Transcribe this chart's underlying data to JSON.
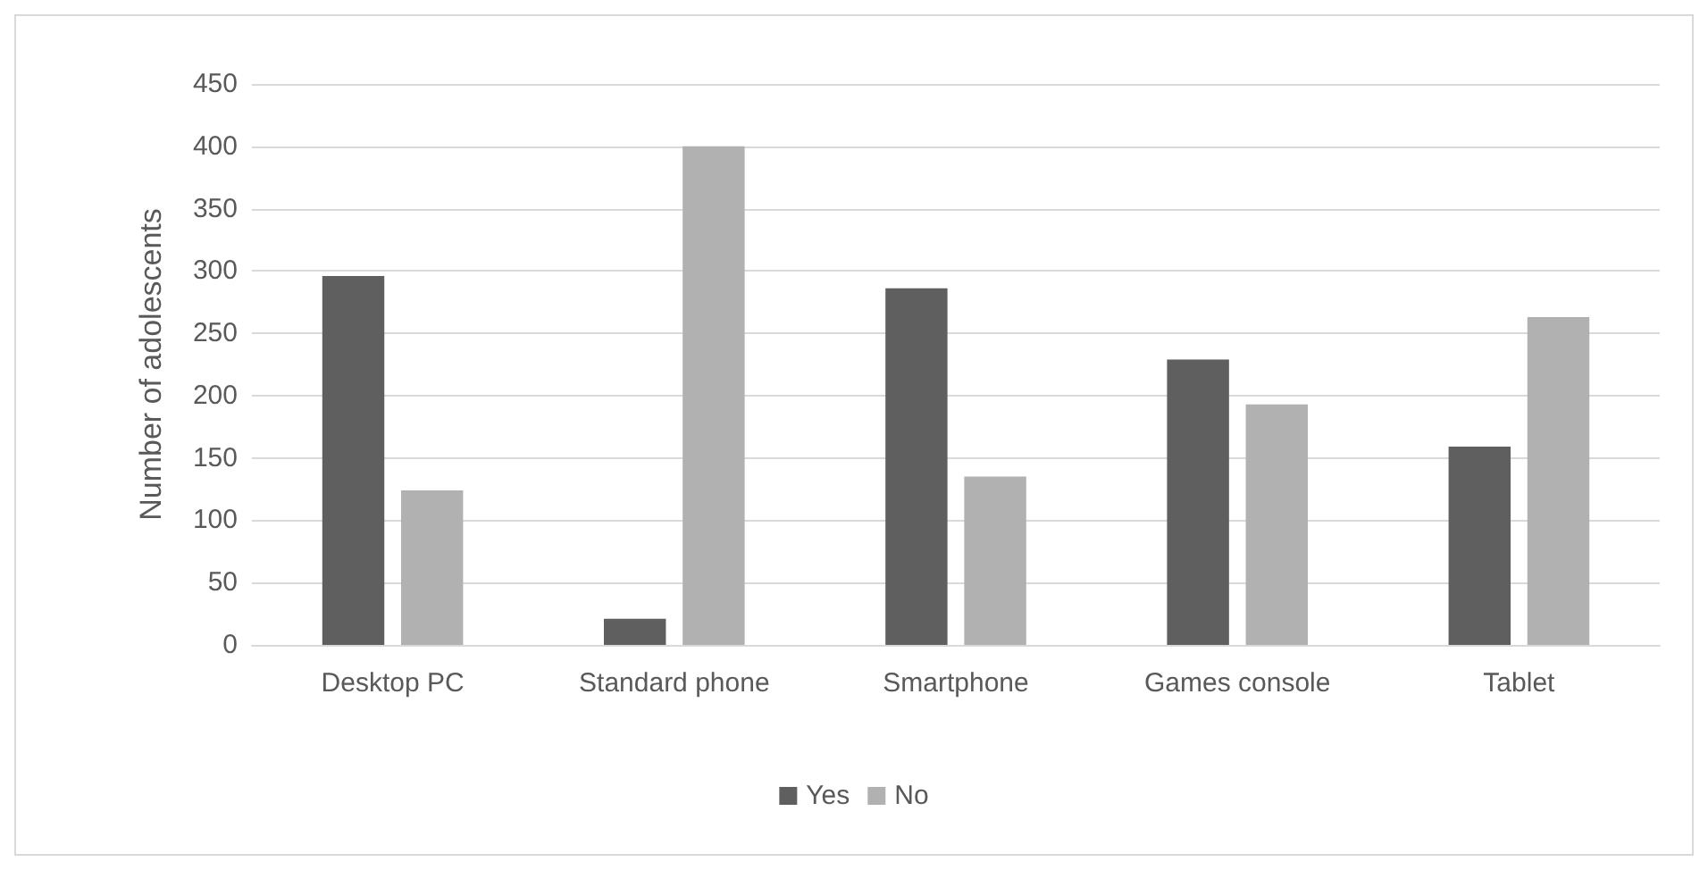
{
  "chart_data": {
    "type": "bar",
    "ylabel": "Number of adolescents",
    "categories": [
      "Desktop PC",
      "Standard phone",
      "Smartphone",
      "Games console",
      "Tablet"
    ],
    "series": [
      {
        "name": "Yes",
        "color": "#5f5f5f",
        "values": [
          296,
          21,
          286,
          229,
          159
        ]
      },
      {
        "name": "No",
        "color": "#b1b1b1",
        "values": [
          124,
          400,
          135,
          193,
          263
        ]
      }
    ],
    "ylim": [
      0,
      450
    ],
    "yticks": [
      0,
      50,
      100,
      150,
      200,
      250,
      300,
      350,
      400,
      450
    ],
    "grid": "y",
    "legend": "bottom"
  }
}
